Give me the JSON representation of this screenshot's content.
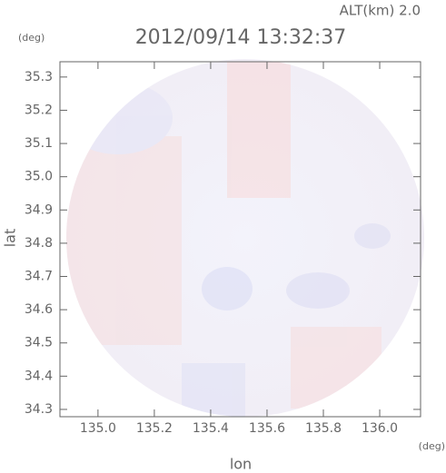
{
  "chart_data": {
    "type": "image",
    "title": "2012/09/14 13:32:37",
    "subtitle": "ALT(km) 2.0",
    "y_unit": "(deg)",
    "x_unit": "(deg)",
    "xlabel": "lon",
    "ylabel": "lat",
    "xlim": [
      134.865,
      136.145
    ],
    "ylim": [
      34.278,
      35.346
    ],
    "xticks": [
      {
        "value": 135.0,
        "label": "135.0"
      },
      {
        "value": 135.2,
        "label": "135.2"
      },
      {
        "value": 135.4,
        "label": "135.4"
      },
      {
        "value": 135.6,
        "label": "135.6"
      },
      {
        "value": 135.8,
        "label": "135.8"
      },
      {
        "value": 136.0,
        "label": "136.0"
      }
    ],
    "yticks": [
      {
        "value": 34.3,
        "label": "34.3"
      },
      {
        "value": 34.4,
        "label": "34.4"
      },
      {
        "value": 34.5,
        "label": "34.5"
      },
      {
        "value": 34.6,
        "label": "34.6"
      },
      {
        "value": 34.7,
        "label": "34.7"
      },
      {
        "value": 34.8,
        "label": "34.8"
      },
      {
        "value": 34.9,
        "label": "34.9"
      },
      {
        "value": 35.0,
        "label": "35.0"
      },
      {
        "value": 35.1,
        "label": "35.1"
      },
      {
        "value": 35.2,
        "label": "35.2"
      },
      {
        "value": 35.3,
        "label": "35.3"
      }
    ]
  }
}
